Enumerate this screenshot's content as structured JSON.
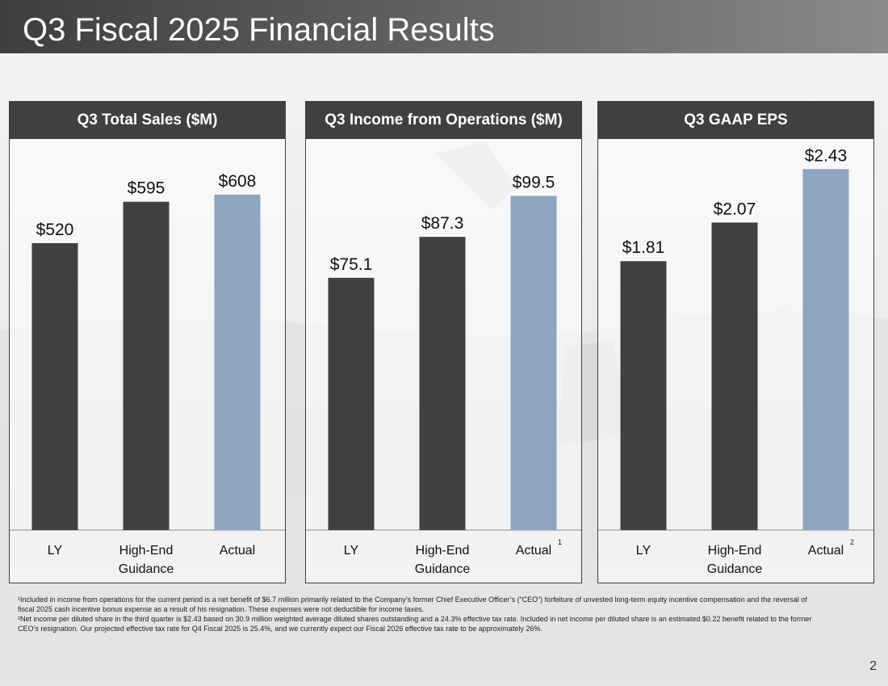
{
  "page_title": "Q3 Fiscal 2025 Financial Results",
  "page_number": "2",
  "colors": {
    "dark_bar": "#404040",
    "actual_bar": "#8ea4bf",
    "header_bg": "#404040"
  },
  "chart_data": [
    {
      "type": "bar",
      "title": "Q3 Total Sales ($M)",
      "categories": [
        "LY",
        "High-End Guidance",
        "Actual"
      ],
      "category_lines": [
        [
          "LY"
        ],
        [
          "High-End",
          "Guidance"
        ],
        [
          "Actual"
        ]
      ],
      "values": [
        520,
        595,
        608
      ],
      "value_labels": [
        "$520",
        "$595",
        "$608"
      ],
      "superscripts": [
        "",
        "",
        ""
      ],
      "ylim": [
        0,
        700
      ]
    },
    {
      "type": "bar",
      "title": "Q3 Income from Operations ($M)",
      "categories": [
        "LY",
        "High-End Guidance",
        "Actual"
      ],
      "category_lines": [
        [
          "LY"
        ],
        [
          "High-End",
          "Guidance"
        ],
        [
          "Actual"
        ]
      ],
      "values": [
        75.1,
        87.3,
        99.5
      ],
      "value_labels": [
        "$75.1",
        "$87.3",
        "$99.5"
      ],
      "superscripts": [
        "",
        "",
        "1"
      ],
      "ylim": [
        0,
        115
      ]
    },
    {
      "type": "bar",
      "title": "Q3 GAAP EPS",
      "categories": [
        "LY",
        "High-End Guidance",
        "Actual"
      ],
      "category_lines": [
        [
          "LY"
        ],
        [
          "High-End",
          "Guidance"
        ],
        [
          "Actual"
        ]
      ],
      "values": [
        1.81,
        2.07,
        2.43
      ],
      "value_labels": [
        "$1.81",
        "$2.07",
        "$2.43"
      ],
      "superscripts": [
        "",
        "",
        "2"
      ],
      "ylim": [
        0,
        2.6
      ]
    }
  ],
  "footnotes": [
    "¹Included in income from operations for the current period is a net benefit of $6.7 million primarily related to the Company’s former Chief Executive Officer’s (“CEO”) forfeiture of unvested long-term equity incentive compensation and the reversal of fiscal 2025 cash incentive bonus expense as a result of his resignation. These expenses were not deductible for income taxes.",
    "²Net income per diluted share in the third quarter is $2.43 based on 30.9 million weighted average diluted shares outstanding and a 24.3% effective tax rate. Included in net income per diluted share is an estimated $0.22 benefit related to the former CEO’s resignation. Our projected effective tax rate for Q4 Fiscal 2025 is 25.4%, and we currently expect our Fiscal 2026 effective tax rate to be approximately 26%."
  ]
}
